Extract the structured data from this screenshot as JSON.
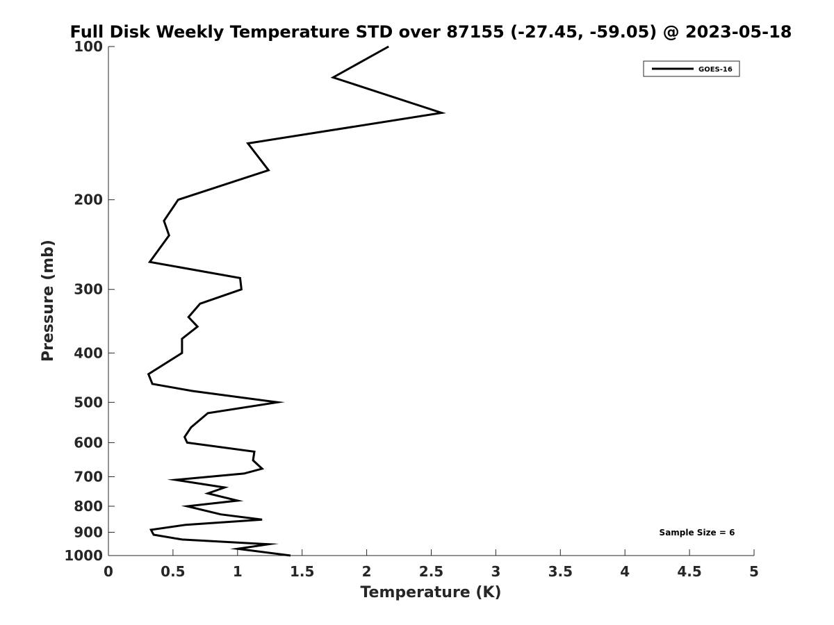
{
  "chart_data": {
    "type": "line",
    "title": "Full Disk Weekly Temperature STD over 87155 (-27.45, -59.05) @ 2023-05-18",
    "xlabel": "Temperature (K)",
    "ylabel": "Pressure (mb)",
    "xlim": [
      0,
      5
    ],
    "ylim": [
      100,
      1000
    ],
    "y_scale": "log",
    "y_reversed": true,
    "x_ticks": [
      "0",
      "0.5",
      "1",
      "1.5",
      "2",
      "2.5",
      "3",
      "3.5",
      "4",
      "4.5",
      "5"
    ],
    "y_ticks": [
      "100",
      "200",
      "300",
      "400",
      "500",
      "600",
      "700",
      "800",
      "900",
      "1000"
    ],
    "grid": false,
    "legend_position": "top-right",
    "annotation": "Sample Size = 6",
    "series": [
      {
        "name": "GOES-16",
        "color": "#000000",
        "x": [
          2.17,
          1.74,
          2.58,
          1.08,
          1.24,
          0.54,
          0.43,
          0.47,
          0.32,
          1.02,
          1.03,
          0.71,
          0.62,
          0.69,
          0.57,
          0.57,
          0.31,
          0.34,
          0.65,
          1.31,
          0.77,
          0.64,
          0.59,
          0.61,
          1.13,
          1.12,
          1.19,
          1.05,
          0.52,
          0.9,
          0.77,
          1.0,
          0.61,
          0.87,
          1.19,
          0.6,
          0.33,
          0.35,
          0.57,
          1.24,
          1.0,
          1.41
        ],
        "y": [
          100,
          115,
          135,
          155,
          175,
          200,
          220,
          235,
          265,
          285,
          300,
          320,
          340,
          355,
          375,
          400,
          440,
          460,
          475,
          500,
          525,
          560,
          585,
          600,
          625,
          650,
          675,
          690,
          710,
          735,
          755,
          780,
          800,
          830,
          850,
          870,
          890,
          910,
          930,
          950,
          970,
          1000
        ]
      }
    ]
  }
}
